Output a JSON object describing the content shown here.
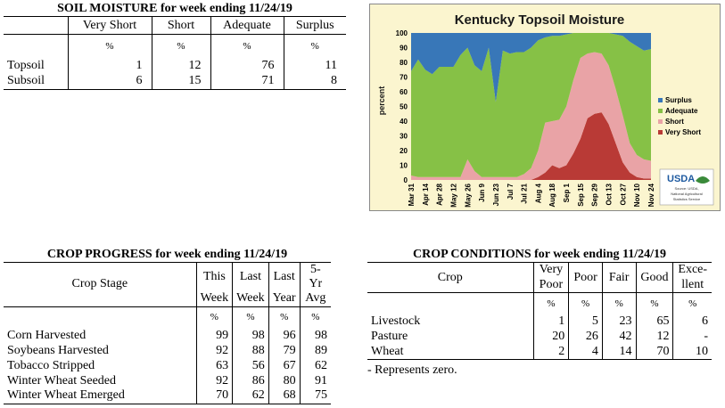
{
  "soil": {
    "title": "SOIL MOISTURE for week ending 11/24/19",
    "columns": [
      "Very Short",
      "Short",
      "Adequate",
      "Surplus"
    ],
    "unit_row": [
      "%",
      "%",
      "%",
      "%"
    ],
    "rows": [
      {
        "label": "Topsoil",
        "values": [
          "1",
          "12",
          "76",
          "11"
        ]
      },
      {
        "label": "Subsoil",
        "values": [
          "6",
          "15",
          "71",
          "8"
        ]
      }
    ]
  },
  "chart_data": {
    "type": "area",
    "title": "Kentucky Topsoil Moisture",
    "ylabel": "percent",
    "ylim": [
      0,
      100
    ],
    "yticks": [
      "0",
      "10",
      "20",
      "30",
      "40",
      "50",
      "60",
      "70",
      "80",
      "90",
      "100"
    ],
    "x": [
      "Mar 31",
      "Apr 7",
      "Apr 14",
      "Apr 21",
      "Apr 28",
      "May 5",
      "May 12",
      "May 19",
      "May 26",
      "Jun 2",
      "Jun 9",
      "Jun 16",
      "Jun 23",
      "Jun 30",
      "Jul 7",
      "Jul 14",
      "Jul 21",
      "Jul 28",
      "Aug 4",
      "Aug 11",
      "Aug 18",
      "Aug 25",
      "Sep 1",
      "Sep 8",
      "Sep 15",
      "Sep 22",
      "Sep 29",
      "Oct 6",
      "Oct 13",
      "Oct 20",
      "Oct 27",
      "Nov 3",
      "Nov 10",
      "Nov 17",
      "Nov 24"
    ],
    "xtick_labels": [
      "Mar 31",
      "Apr 14",
      "Apr 28",
      "May 12",
      "May 26",
      "Jun 9",
      "Jun 23",
      "Jul 7",
      "Jul 21",
      "Aug 4",
      "Aug 18",
      "Sep 1",
      "Sep 15",
      "Sep 29",
      "Oct 13",
      "Oct 27",
      "Nov 10",
      "Nov 24"
    ],
    "stacking": "stacked, Very Short at bottom",
    "series": [
      {
        "name": "Very Short",
        "color": "#b93a36",
        "values": [
          0,
          0,
          0,
          0,
          0,
          0,
          0,
          0,
          0,
          0,
          0,
          0,
          0,
          0,
          0,
          0,
          0,
          0,
          2,
          5,
          10,
          8,
          10,
          18,
          28,
          42,
          45,
          46,
          38,
          25,
          12,
          5,
          2,
          1,
          1
        ]
      },
      {
        "name": "Short",
        "color": "#e9a3a6",
        "values": [
          3,
          2,
          2,
          2,
          2,
          2,
          2,
          2,
          14,
          6,
          2,
          2,
          2,
          2,
          2,
          2,
          4,
          8,
          18,
          34,
          30,
          33,
          40,
          50,
          55,
          44,
          42,
          40,
          40,
          37,
          32,
          20,
          15,
          13,
          12
        ]
      },
      {
        "name": "Adequate",
        "color": "#86c146",
        "values": [
          71,
          80,
          73,
          70,
          75,
          75,
          75,
          83,
          76,
          72,
          72,
          88,
          51,
          86,
          84,
          85,
          83,
          82,
          75,
          58,
          58,
          57,
          49,
          32,
          17,
          14,
          13,
          14,
          22,
          37,
          54,
          69,
          74,
          74,
          76
        ]
      },
      {
        "name": "Surplus",
        "color": "#3877b8",
        "values": [
          26,
          18,
          25,
          28,
          23,
          23,
          23,
          15,
          10,
          22,
          26,
          10,
          47,
          12,
          14,
          13,
          13,
          10,
          5,
          3,
          2,
          2,
          1,
          0,
          0,
          0,
          0,
          0,
          0,
          1,
          2,
          6,
          9,
          12,
          11
        ]
      }
    ],
    "legend": "right, stacked vertically",
    "legend_entries": [
      "Surplus",
      "Adequate",
      "Short",
      "Very Short"
    ],
    "grid": false,
    "logo_text": "USDA",
    "source_text": [
      "Source: USDA,",
      "National Agricultural",
      "Statistics Service"
    ]
  },
  "progress": {
    "title": "CROP PROGRESS for week ending 11/24/19",
    "stage_header": "Crop Stage",
    "columns": [
      {
        "l1": "This",
        "l2": "Week"
      },
      {
        "l1": "Last",
        "l2": "Week"
      },
      {
        "l1": "Last",
        "l2": "Year"
      },
      {
        "l1": "5-Yr",
        "l2": "Avg"
      }
    ],
    "unit_row": [
      "%",
      "%",
      "%",
      "%"
    ],
    "rows": [
      {
        "label": "Corn Harvested",
        "values": [
          "99",
          "98",
          "96",
          "98"
        ]
      },
      {
        "label": "Soybeans Harvested",
        "values": [
          "92",
          "88",
          "79",
          "89"
        ]
      },
      {
        "label": "Tobacco Stripped",
        "values": [
          "63",
          "56",
          "67",
          "62"
        ]
      },
      {
        "label": "Winter Wheat Seeded",
        "values": [
          "92",
          "86",
          "80",
          "91"
        ]
      },
      {
        "label": "Winter Wheat Emerged",
        "values": [
          "70",
          "62",
          "68",
          "75"
        ]
      }
    ]
  },
  "conditions": {
    "title": "CROP CONDITIONS for week ending 11/24/19",
    "crop_header": "Crop",
    "columns": [
      {
        "l1": "Very",
        "l2": "Poor"
      },
      {
        "l1": "Poor",
        "l2": ""
      },
      {
        "l1": "Fair",
        "l2": ""
      },
      {
        "l1": "Good",
        "l2": ""
      },
      {
        "l1": "Exce-",
        "l2": "llent"
      }
    ],
    "unit_row": [
      "%",
      "%",
      "%",
      "%",
      "%"
    ],
    "rows": [
      {
        "label": "Livestock",
        "values": [
          "1",
          "5",
          "23",
          "65",
          "6"
        ]
      },
      {
        "label": "Pasture",
        "values": [
          "20",
          "26",
          "42",
          "12",
          "-"
        ]
      },
      {
        "label": "Wheat",
        "values": [
          "2",
          "4",
          "14",
          "70",
          "10"
        ]
      }
    ],
    "note": "- Represents zero."
  }
}
